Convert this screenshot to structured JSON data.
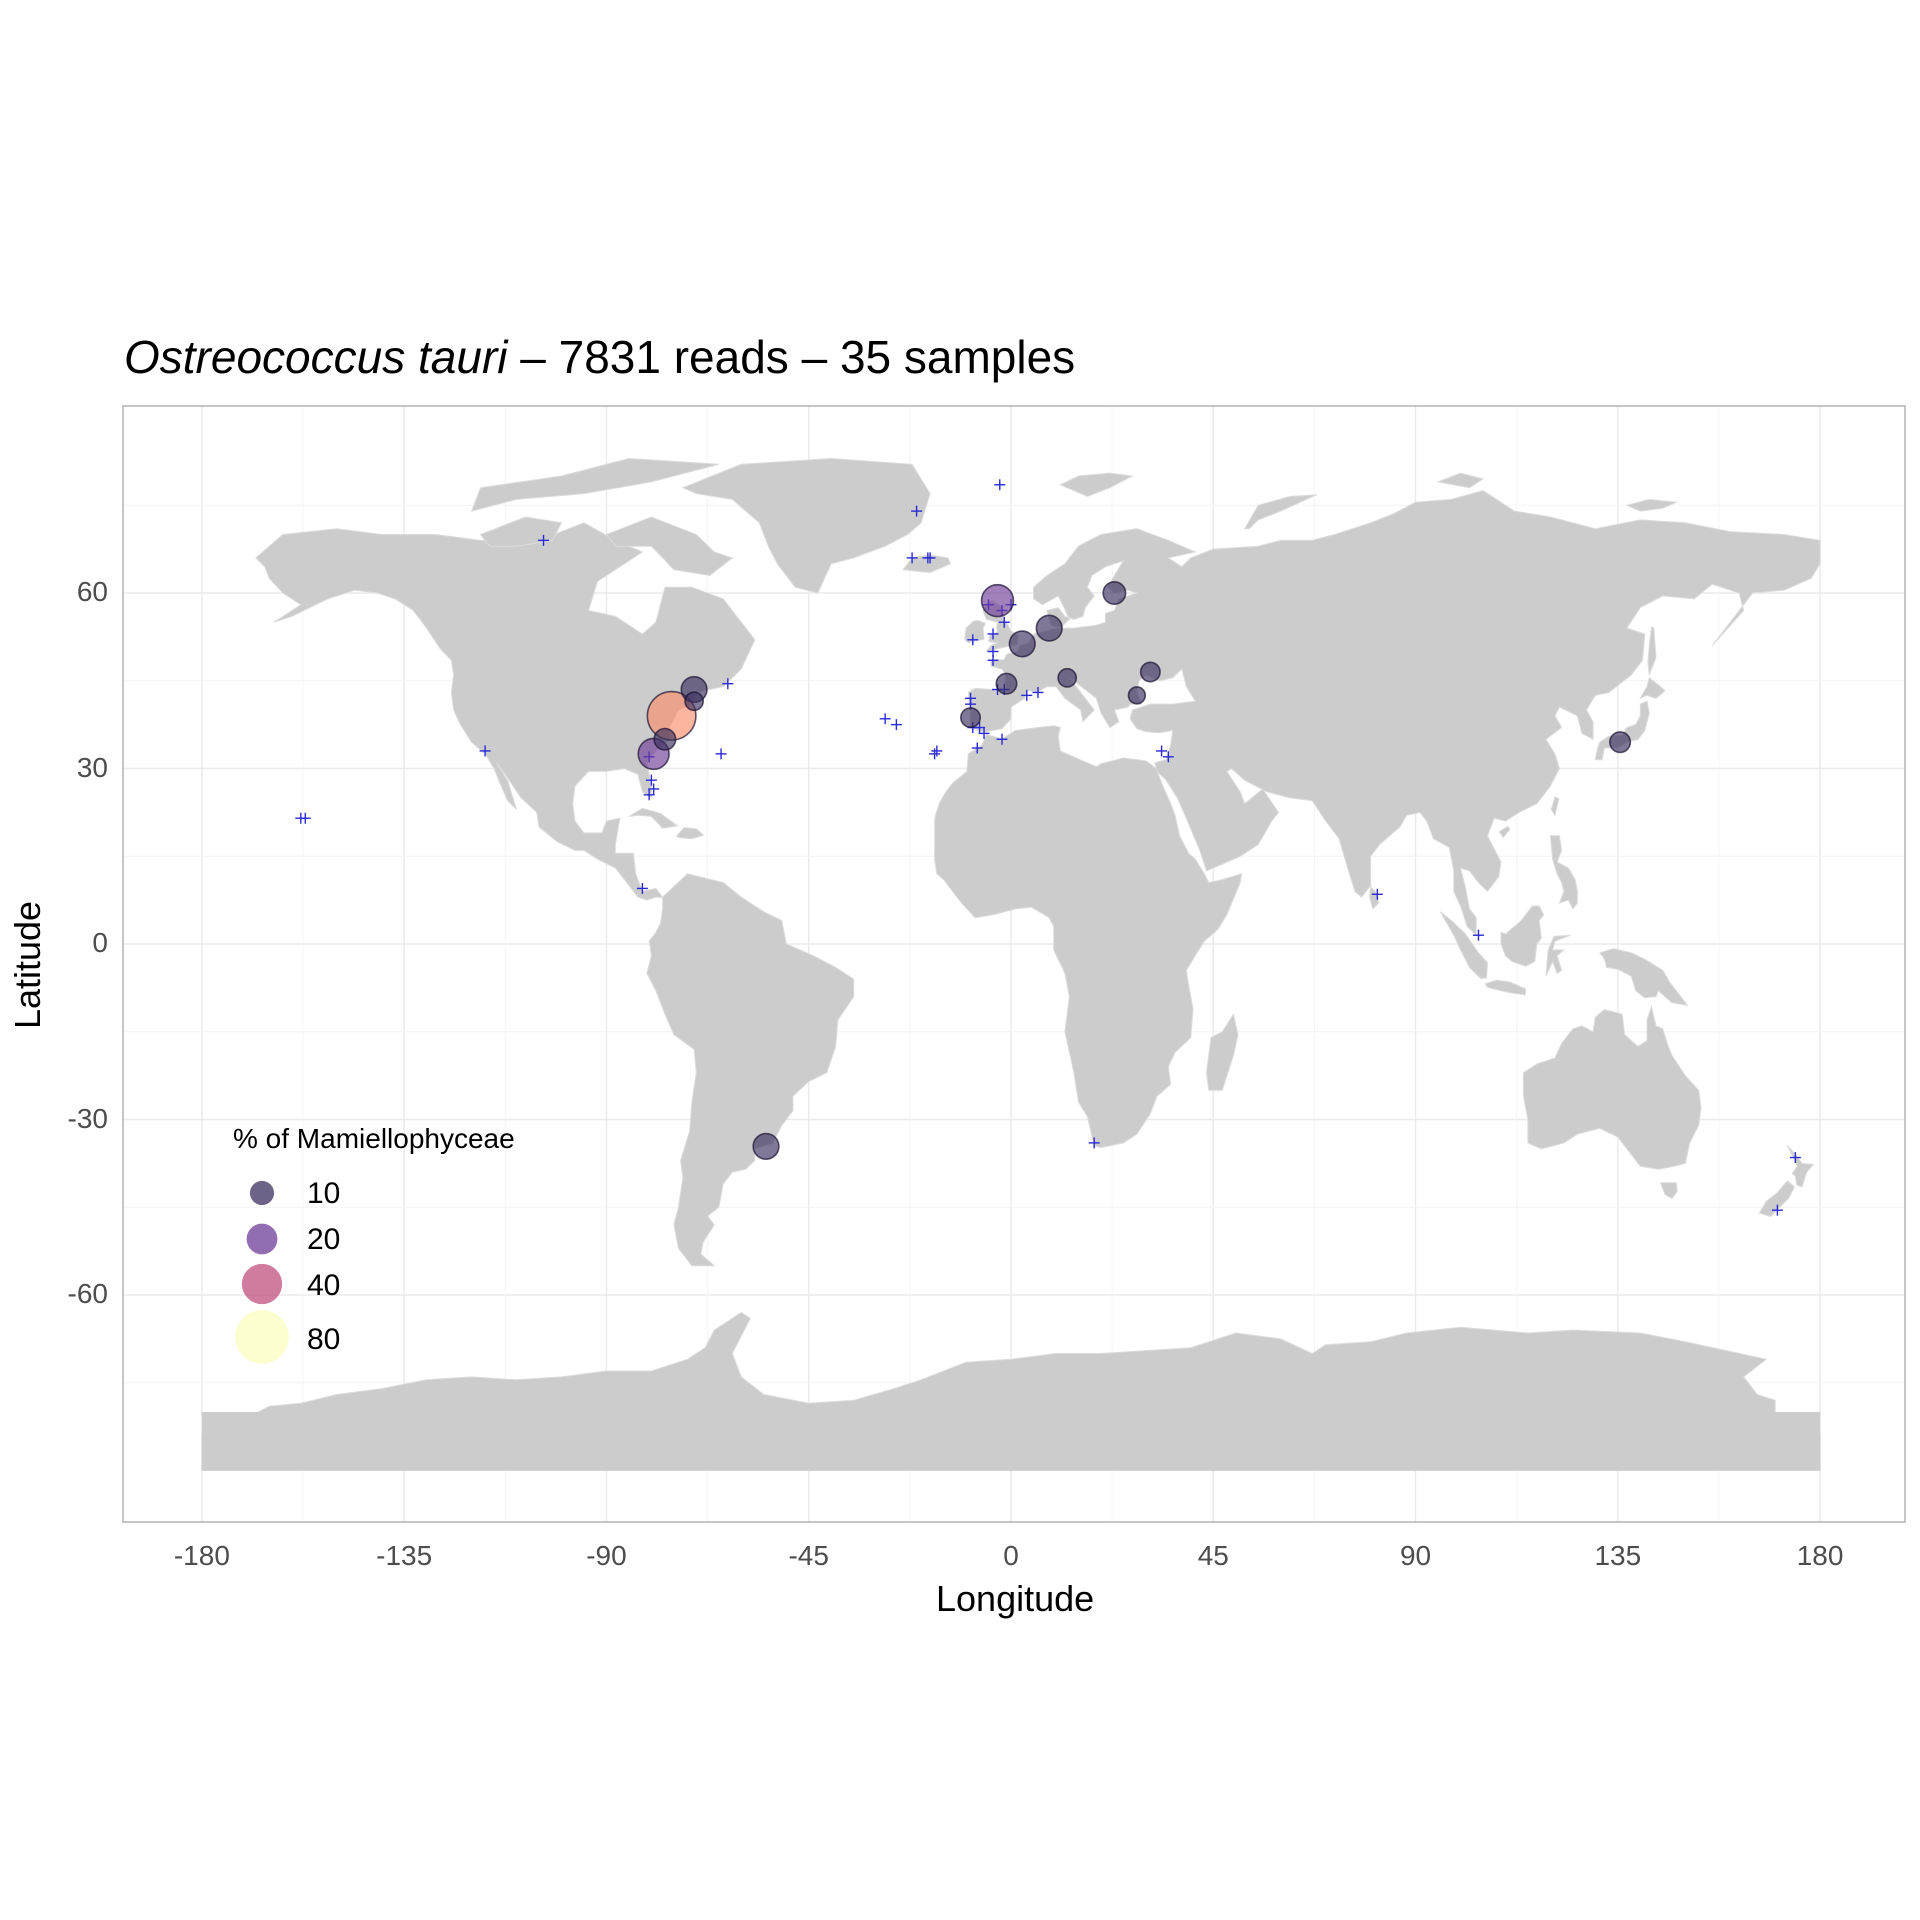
{
  "title": {
    "species": "Ostreococcus tauri",
    "rest": " – 7831 reads – 35 samples"
  },
  "axes": {
    "xlabel": "Longitude",
    "ylabel": "Latitude",
    "xticks": [
      -180,
      -135,
      -90,
      -45,
      0,
      45,
      90,
      135,
      180
    ],
    "yticks": [
      60,
      30,
      0,
      -30,
      -60
    ],
    "xlim": [
      -198,
      198
    ],
    "ylim": [
      -98,
      92
    ]
  },
  "colors": {
    "land": "#cccccc",
    "grid": "#ebebeb",
    "panel_border": "#b3b3b3",
    "cross": "#2b2bd6",
    "pct10": "#3b2f5e",
    "pct20": "#6f3c98",
    "pct40": "#c0507e",
    "pct60": "#fb8d6a",
    "pct80": "#fcfdbf"
  },
  "legend": {
    "title": "% of Mamiellophyceae",
    "entries": [
      {
        "label": "10",
        "value": 10
      },
      {
        "label": "20",
        "value": 20
      },
      {
        "label": "40",
        "value": 40
      },
      {
        "label": "80",
        "value": 80
      }
    ]
  },
  "chart_data": {
    "type": "scatter",
    "series_samples_present": [
      {
        "lon": -75.5,
        "lat": 39.0,
        "pct": 63
      },
      {
        "lon": -79.5,
        "lat": 32.5,
        "pct": 20
      },
      {
        "lon": -77.0,
        "lat": 35.0,
        "pct": 7
      },
      {
        "lon": -70.5,
        "lat": 43.5,
        "pct": 12
      },
      {
        "lon": -70.5,
        "lat": 41.5,
        "pct": 4
      },
      {
        "lon": -54.5,
        "lat": -34.6,
        "pct": 12
      },
      {
        "lon": -3.0,
        "lat": 58.7,
        "pct": 22
      },
      {
        "lon": 2.5,
        "lat": 51.3,
        "pct": 12
      },
      {
        "lon": 8.5,
        "lat": 54.0,
        "pct": 12
      },
      {
        "lon": -1.0,
        "lat": 44.5,
        "pct": 6
      },
      {
        "lon": -9.0,
        "lat": 38.7,
        "pct": 5
      },
      {
        "lon": 12.5,
        "lat": 45.5,
        "pct": 4
      },
      {
        "lon": 23.0,
        "lat": 60.0,
        "pct": 8
      },
      {
        "lon": 31.0,
        "lat": 46.5,
        "pct": 5
      },
      {
        "lon": 28.0,
        "lat": 42.5,
        "pct": 3
      },
      {
        "lon": 135.5,
        "lat": 34.5,
        "pct": 6
      }
    ],
    "series_other_samples": [
      {
        "lon": -104,
        "lat": 69
      },
      {
        "lon": -21,
        "lat": 74
      },
      {
        "lon": -2.5,
        "lat": 78.5
      },
      {
        "lon": -22,
        "lat": 66
      },
      {
        "lon": -18.5,
        "lat": 66
      },
      {
        "lon": -18,
        "lat": 66
      },
      {
        "lon": -5,
        "lat": 58
      },
      {
        "lon": -8.5,
        "lat": 52
      },
      {
        "lon": -4,
        "lat": 53
      },
      {
        "lon": -4,
        "lat": 50
      },
      {
        "lon": -4,
        "lat": 48.5
      },
      {
        "lon": -1.5,
        "lat": 55
      },
      {
        "lon": -2,
        "lat": 57
      },
      {
        "lon": 0,
        "lat": 58
      },
      {
        "lon": -9,
        "lat": 42
      },
      {
        "lon": -9,
        "lat": 41
      },
      {
        "lon": -8.5,
        "lat": 37
      },
      {
        "lon": -7,
        "lat": 37
      },
      {
        "lon": -6,
        "lat": 36
      },
      {
        "lon": -7.5,
        "lat": 33.5
      },
      {
        "lon": -2,
        "lat": 35
      },
      {
        "lon": -3,
        "lat": 43.5
      },
      {
        "lon": -1.5,
        "lat": 43.5
      },
      {
        "lon": 3.5,
        "lat": 42.5
      },
      {
        "lon": 6,
        "lat": 43
      },
      {
        "lon": -28,
        "lat": 38.5
      },
      {
        "lon": -25.5,
        "lat": 37.5
      },
      {
        "lon": -17,
        "lat": 32.5
      },
      {
        "lon": -16.5,
        "lat": 33
      },
      {
        "lon": -64.5,
        "lat": 32.5
      },
      {
        "lon": -63,
        "lat": 44.5
      },
      {
        "lon": -117,
        "lat": 33
      },
      {
        "lon": -158,
        "lat": 21.5
      },
      {
        "lon": -157,
        "lat": 21.5
      },
      {
        "lon": -80.5,
        "lat": 32
      },
      {
        "lon": -80,
        "lat": 28
      },
      {
        "lon": -80.5,
        "lat": 25.5
      },
      {
        "lon": -79.5,
        "lat": 26.5
      },
      {
        "lon": -82,
        "lat": 9.5
      },
      {
        "lon": 33.5,
        "lat": 33
      },
      {
        "lon": 35,
        "lat": 32
      },
      {
        "lon": 81.5,
        "lat": 8.5
      },
      {
        "lon": 104,
        "lat": 1.5
      },
      {
        "lon": 18.5,
        "lat": -34
      },
      {
        "lon": 174.5,
        "lat": -36.5
      },
      {
        "lon": 170.5,
        "lat": -45.5
      }
    ]
  }
}
